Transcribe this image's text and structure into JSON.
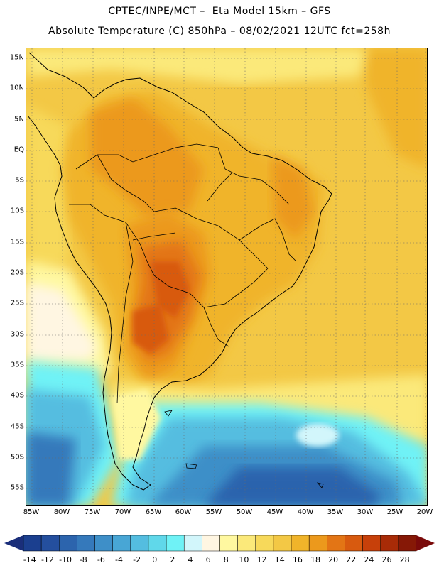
{
  "title_line1": "CPTEC/INPE/MCT –  Eta Model 15km – GFS",
  "title_line2": "Absolute Temperature (C) 850hPa – 08/02/2021 12UTC fct=258h",
  "lat_labels": [
    "15N",
    "10N",
    "5N",
    "EQ",
    "5S",
    "10S",
    "15S",
    "20S",
    "25S",
    "30S",
    "35S",
    "40S",
    "45S",
    "50S",
    "55S"
  ],
  "lon_labels": [
    "85W",
    "80W",
    "75W",
    "70W",
    "65W",
    "60W",
    "55W",
    "50W",
    "45W",
    "40W",
    "35W",
    "30W",
    "25W",
    "20W"
  ],
  "colorbar": {
    "labels": [
      "-14",
      "-12",
      "-10",
      "-8",
      "-6",
      "-4",
      "-2",
      "0",
      "2",
      "4",
      "6",
      "8",
      "10",
      "12",
      "14",
      "16",
      "18",
      "20",
      "22",
      "24",
      "26",
      "28"
    ],
    "colors": [
      "#1b3f8f",
      "#244f9e",
      "#2c64ad",
      "#3579bb",
      "#3e8fc8",
      "#48a6d5",
      "#54bde0",
      "#60d8ea",
      "#6ff2f6",
      "#d2f6fb",
      "#fff6e2",
      "#fff8a0",
      "#fbe97a",
      "#f7d95a",
      "#f3c845",
      "#f0b42a",
      "#ec991c",
      "#e37515",
      "#d85a0f",
      "#c7400a",
      "#a82b07",
      "#861806"
    ],
    "low_arrow": "#1a2e7a",
    "high_arrow": "#7a0a0a"
  },
  "colors": {
    "background_warm": "#f3c845",
    "land_hot": "#e37515",
    "ocean_cold": "#3579bb",
    "coastline": "#000000"
  }
}
